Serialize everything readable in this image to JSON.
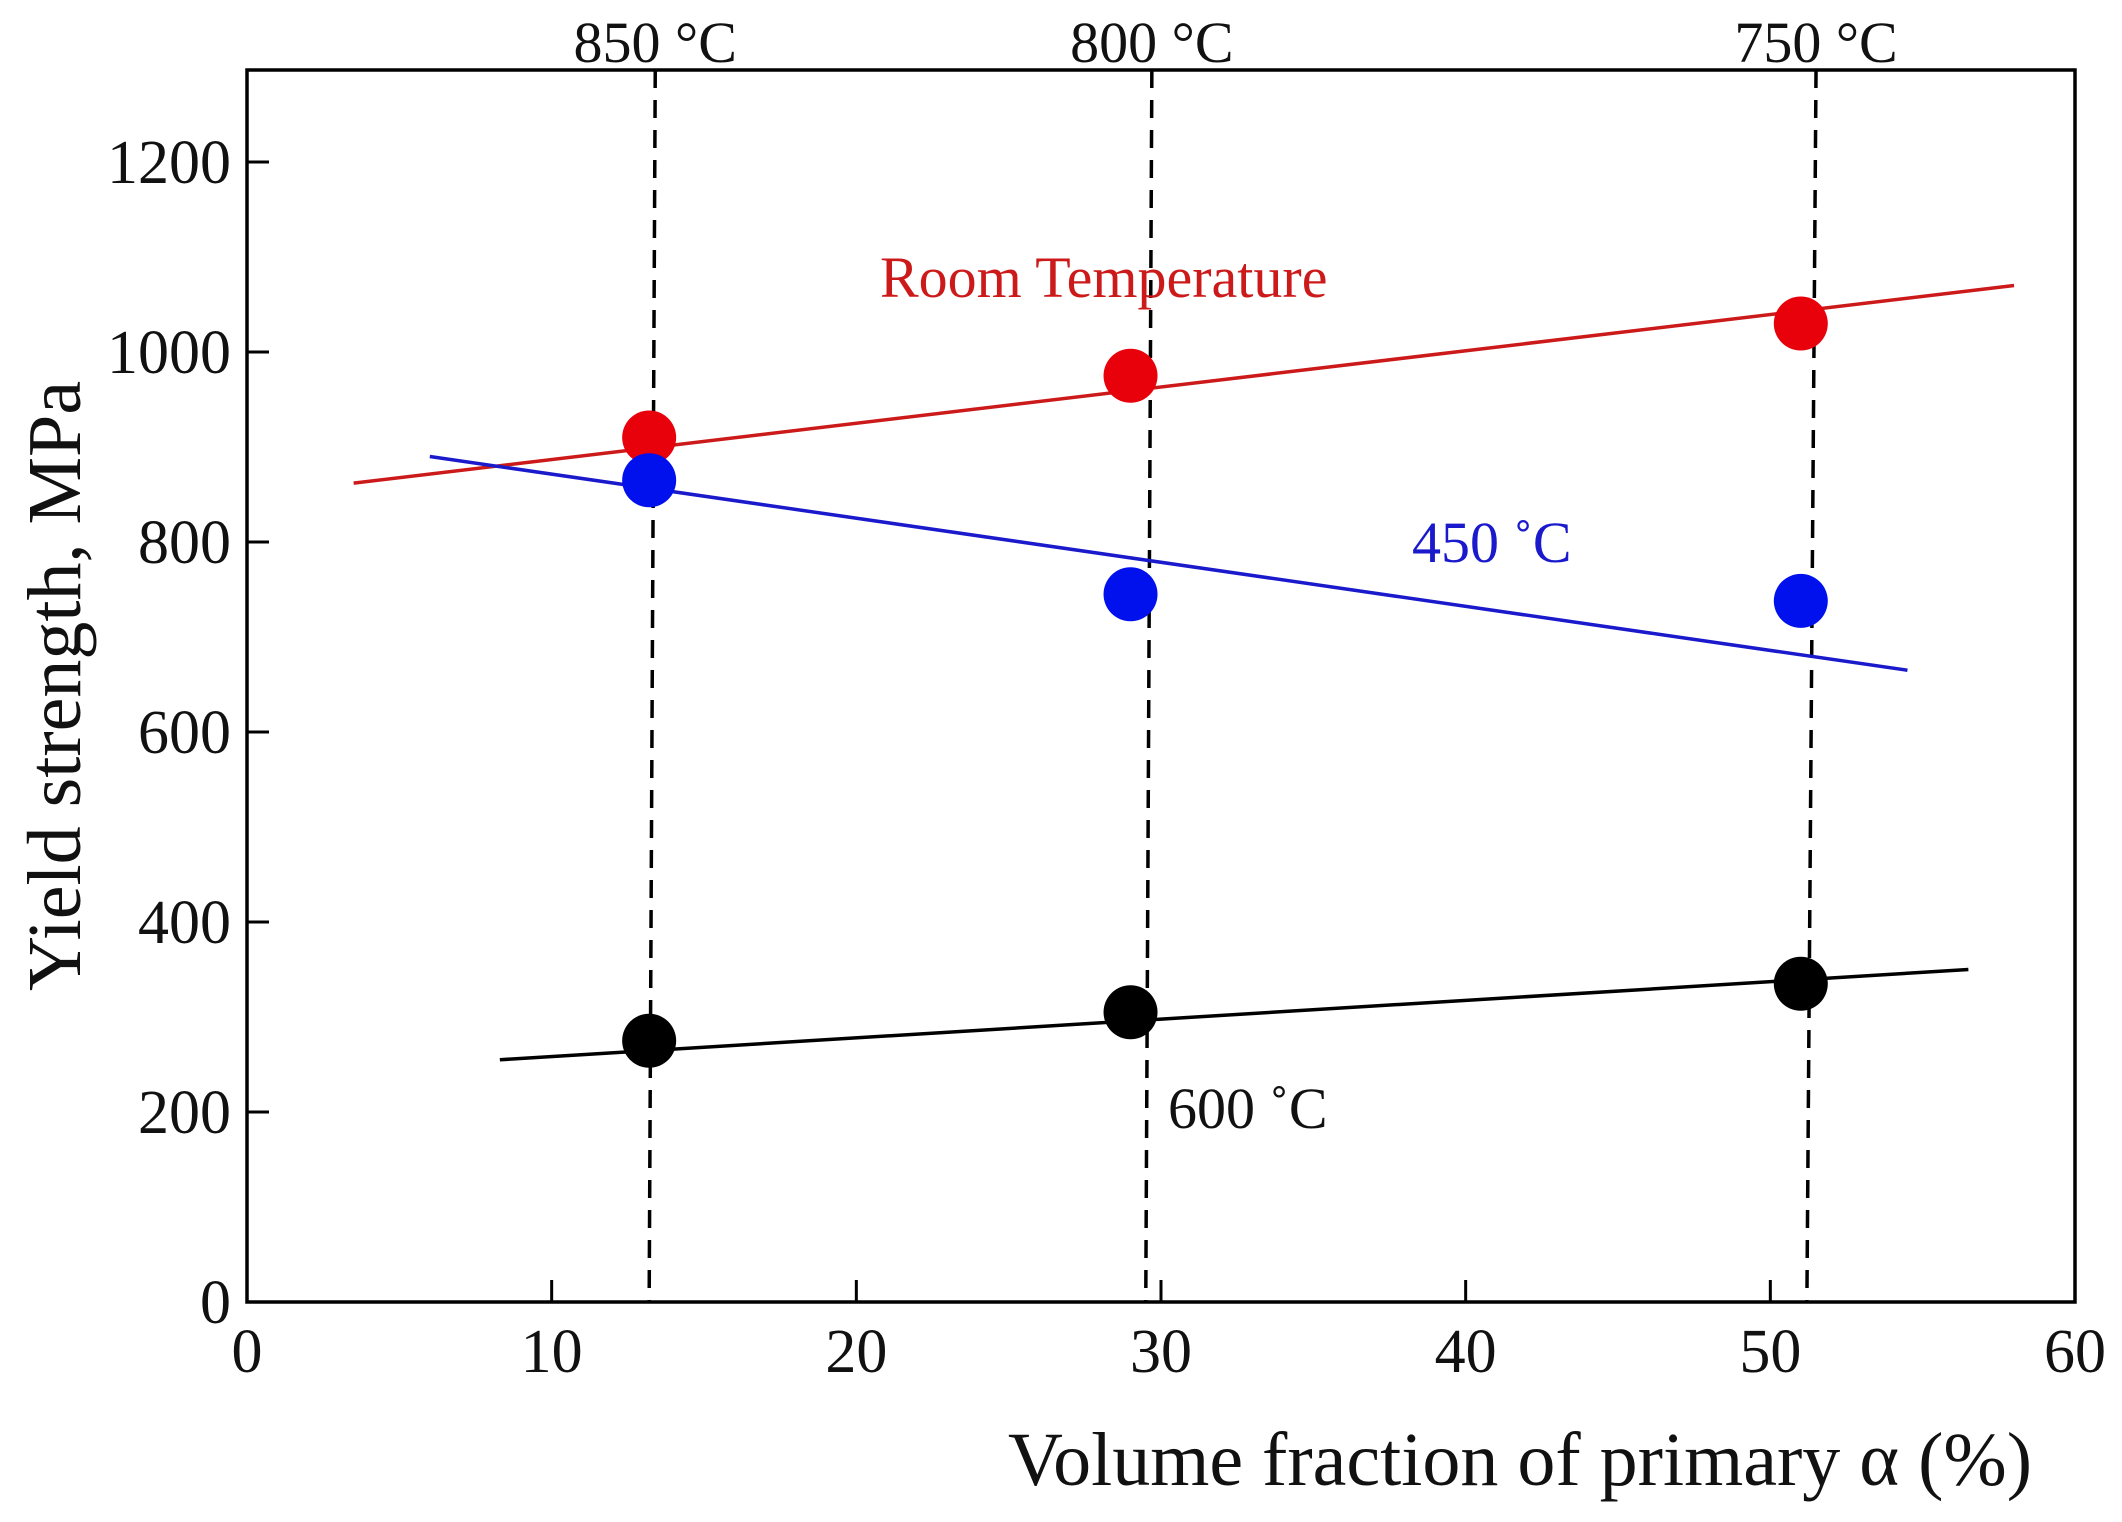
{
  "chart_data": {
    "type": "scatter",
    "title": "",
    "xlabel": "Volume fraction of primary α (%)",
    "ylabel": "Yield strength, MPa",
    "xlim": [
      0,
      60
    ],
    "ylim": [
      0,
      1300
    ],
    "xticks": [
      0,
      10,
      20,
      30,
      40,
      50,
      60
    ],
    "yticks": [
      0,
      200,
      400,
      600,
      800,
      1000,
      1200
    ],
    "grid": false,
    "series": [
      {
        "name": "Room Temperature",
        "color": "#e8000b",
        "line_color": "#cc1a1a",
        "x": [
          13.2,
          29.0,
          51.0
        ],
        "y": [
          910,
          975,
          1030
        ],
        "fit": {
          "x": [
            3.5,
            58.0
          ],
          "y": [
            862,
            1070
          ]
        }
      },
      {
        "name": "450 ˚C",
        "color": "#0011ee",
        "line_color": "#1a1acc",
        "x": [
          13.2,
          29.0,
          51.0
        ],
        "y": [
          865,
          745,
          738
        ],
        "fit": {
          "x": [
            6.0,
            54.5
          ],
          "y": [
            890,
            665
          ]
        }
      },
      {
        "name": "600 ˚C",
        "color": "#000000",
        "line_color": "#000000",
        "x": [
          13.2,
          29.0,
          51.0
        ],
        "y": [
          275,
          305,
          335
        ],
        "fit": {
          "x": [
            8.3,
            56.5
          ],
          "y": [
            255,
            350
          ]
        }
      }
    ],
    "temperature_lines": [
      {
        "label": "850 °C",
        "x_top": 13.4,
        "x_bottom": 13.2
      },
      {
        "label": "800 °C",
        "x_top": 29.7,
        "x_bottom": 29.5
      },
      {
        "label": "750 °C",
        "x_top": 51.5,
        "x_bottom": 51.2
      }
    ]
  }
}
